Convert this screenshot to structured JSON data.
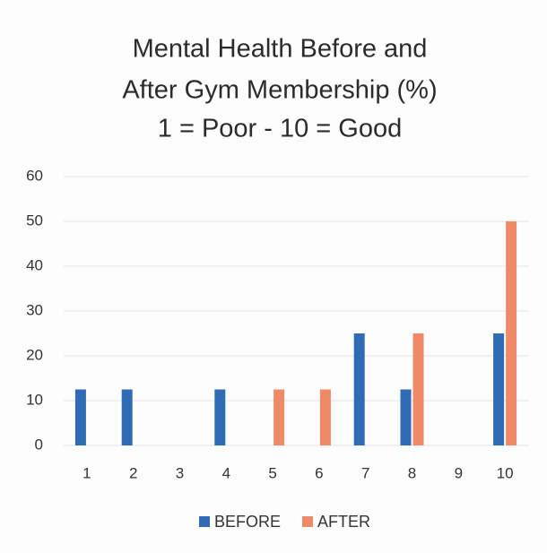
{
  "chart_data": {
    "type": "bar",
    "title": [
      "Mental Health Before and",
      "After Gym Membership (%)",
      "1 = Poor - 10 = Good"
    ],
    "categories": [
      "1",
      "2",
      "3",
      "4",
      "5",
      "6",
      "7",
      "8",
      "9",
      "10"
    ],
    "series": [
      {
        "name": "BEFORE",
        "color": "#2f6cb3",
        "values": [
          12.5,
          12.5,
          0,
          12.5,
          0,
          0,
          25,
          12.5,
          0,
          25
        ]
      },
      {
        "name": "AFTER",
        "color": "#ef8a68",
        "values": [
          0,
          0,
          0,
          0,
          12.5,
          12.5,
          0,
          25,
          0,
          50
        ]
      }
    ],
    "ylim": [
      0,
      60
    ],
    "yticks": [
      0,
      10,
      20,
      30,
      40,
      50,
      60
    ],
    "grid": true,
    "legend": "bottom"
  }
}
